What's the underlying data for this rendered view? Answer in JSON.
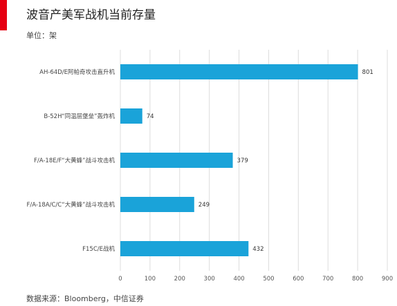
{
  "header": {
    "title": "波音产美军战机当前存量",
    "unit": "单位：架"
  },
  "footer": {
    "source": "数据来源：Bloomberg，中信证券"
  },
  "colors": {
    "accent": "#e60012",
    "bar": "#1aa3d9"
  },
  "chart_data": {
    "type": "bar",
    "orientation": "horizontal",
    "title": "波音产美军战机当前存量",
    "unit": "单位：架",
    "categories": [
      "AH-64D/E阿帕奇攻击直升机",
      "B-52H“同温层堡垒”轰炸机",
      "F/A-18E/F“大黄蜂”战斗攻击机",
      "F/A-18A/C/C“大黄蜂”战斗攻击机",
      "F15C/E战机"
    ],
    "values": [
      801,
      74,
      379,
      249,
      432
    ],
    "xlim": [
      0,
      900
    ],
    "xticks": [
      0,
      100,
      200,
      300,
      400,
      500,
      600,
      700,
      800,
      900
    ],
    "grid": true
  }
}
